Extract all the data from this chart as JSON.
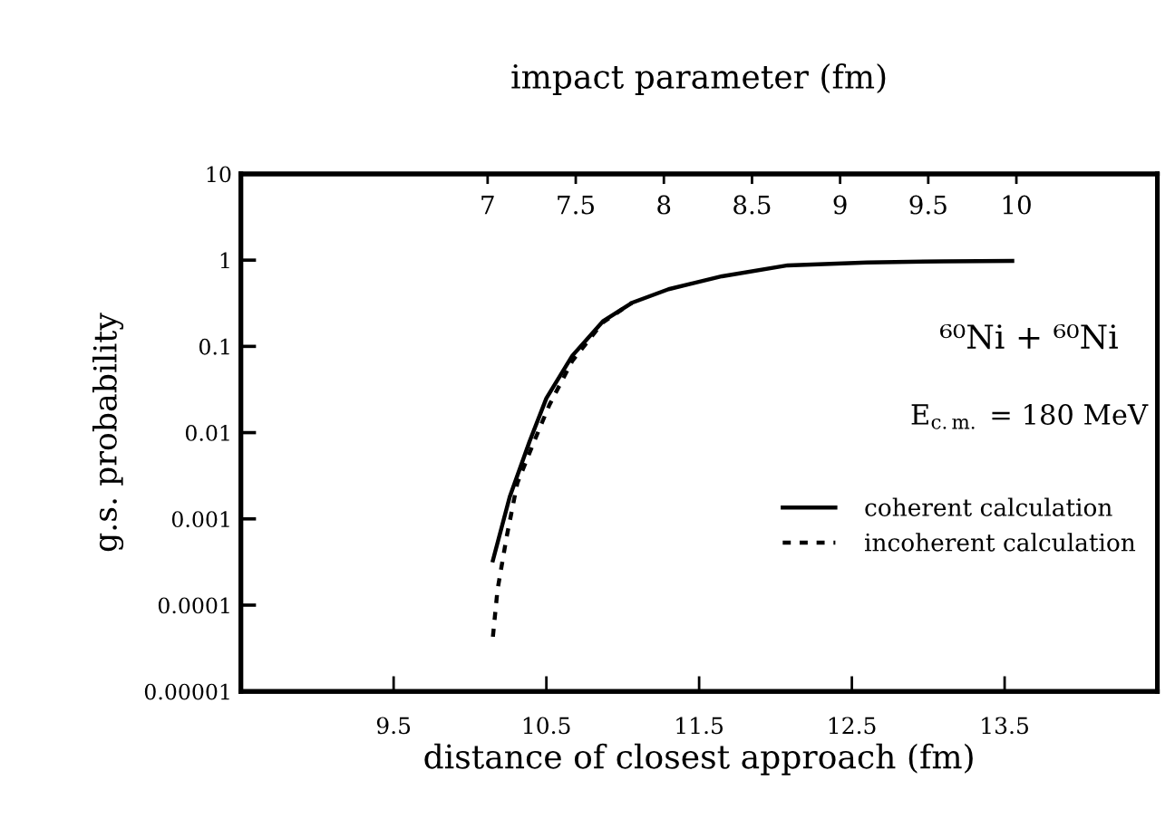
{
  "chart_data": {
    "type": "line",
    "xlabel": "distance of closest approach (fm)",
    "ylabel": "g.s. probability",
    "x2label": "impact parameter (fm)",
    "xlim": [
      8.5,
      14.5
    ],
    "xticks": [
      9.5,
      10.5,
      11.5,
      12.5,
      13.5
    ],
    "x2lim": [
      5.6,
      10.8
    ],
    "x2ticks": [
      7,
      7.5,
      8,
      8.5,
      9,
      9.5,
      10
    ],
    "log": "y",
    "ylim": [
      1e-05,
      10
    ],
    "yticks": [
      {
        "value": 1e-05,
        "label": "0.00001"
      },
      0.0001,
      0.001,
      0.01,
      0.1,
      1,
      10
    ],
    "grid": false,
    "legend": "lower right",
    "annotations": [
      "⁶⁰Ni + ⁶⁰Ni",
      "E$_{c.m.}$ = 180 MeV"
    ],
    "series": [
      {
        "name": "coherent calculation",
        "color": "#000000",
        "line_style": "solid",
        "x": [
          10.15,
          10.26,
          10.39,
          10.5,
          10.67,
          10.87,
          11.06,
          11.3,
          11.65,
          12.08,
          12.6,
          13.1,
          13.55
        ],
        "values": [
          0.00033,
          0.0018,
          0.0079,
          0.025,
          0.078,
          0.195,
          0.32,
          0.46,
          0.65,
          0.87,
          0.94,
          0.97,
          0.98
        ]
      },
      {
        "name": "incoherent calculation",
        "color": "#000000",
        "line_style": "dotted",
        "x": [
          10.15,
          10.18,
          10.24,
          10.31,
          10.42,
          10.52,
          10.67,
          10.87,
          11.06
        ],
        "values": [
          4.3e-05,
          0.00015,
          0.00062,
          0.0026,
          0.0079,
          0.021,
          0.068,
          0.19,
          0.32
        ]
      }
    ]
  }
}
